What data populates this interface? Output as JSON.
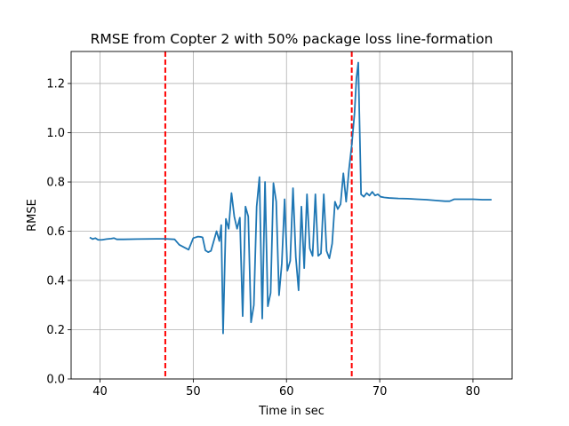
{
  "chart_data": {
    "type": "line",
    "title": "RMSE from Copter 2 with 50% package loss line-formation",
    "xlabel": "Time in sec",
    "ylabel": "RMSE",
    "xlim": [
      36.9,
      84.2
    ],
    "ylim": [
      0.0,
      1.33
    ],
    "xticks": [
      40,
      50,
      60,
      70,
      80
    ],
    "yticks": [
      0.0,
      0.2,
      0.4,
      0.6,
      0.8,
      1.0,
      1.2
    ],
    "xtick_labels": [
      "40",
      "50",
      "60",
      "70",
      "80"
    ],
    "ytick_labels": [
      "0.0",
      "0.2",
      "0.4",
      "0.6",
      "0.8",
      "1.0",
      "1.2"
    ],
    "grid": true,
    "line_color": "#1f77b4",
    "vline_color": "#ff0000",
    "vlines": [
      47.0,
      67.0
    ],
    "series": [
      {
        "x": [
          38.9,
          39.2,
          39.5,
          39.8,
          40.2,
          40.7,
          41.2,
          41.5,
          41.8,
          42.5,
          44.0,
          46.0,
          47.0,
          48.0,
          48.5,
          49.0,
          49.5,
          50.0,
          50.5,
          50.8,
          51.0,
          51.3,
          51.6,
          51.9,
          52.2,
          52.5,
          52.8,
          53.0,
          53.2,
          53.5,
          53.8,
          54.1,
          54.4,
          54.7,
          55.0,
          55.3,
          55.6,
          55.9,
          56.2,
          56.5,
          56.8,
          57.1,
          57.4,
          57.7,
          58.0,
          58.3,
          58.6,
          58.9,
          59.2,
          59.5,
          59.8,
          60.1,
          60.4,
          60.7,
          61.0,
          61.3,
          61.6,
          61.9,
          62.2,
          62.5,
          62.8,
          63.1,
          63.4,
          63.7,
          64.0,
          64.3,
          64.6,
          64.9,
          65.2,
          65.5,
          65.8,
          66.1,
          66.4,
          66.7,
          67.0,
          67.3,
          67.5,
          67.7,
          68.0,
          68.3,
          68.6,
          68.9,
          69.2,
          69.5,
          69.8,
          70.1,
          70.5,
          71.0,
          72.0,
          73.0,
          74.0,
          75.0,
          76.0,
          77.0,
          77.5,
          78.0,
          80.0,
          81.0,
          82.0
        ],
        "y": [
          0.575,
          0.568,
          0.572,
          0.565,
          0.565,
          0.568,
          0.57,
          0.572,
          0.567,
          0.567,
          0.568,
          0.569,
          0.569,
          0.567,
          0.545,
          0.535,
          0.525,
          0.572,
          0.578,
          0.577,
          0.575,
          0.522,
          0.515,
          0.52,
          0.56,
          0.6,
          0.56,
          0.625,
          0.185,
          0.65,
          0.61,
          0.755,
          0.66,
          0.61,
          0.655,
          0.255,
          0.7,
          0.66,
          0.23,
          0.3,
          0.7,
          0.82,
          0.245,
          0.8,
          0.295,
          0.35,
          0.795,
          0.72,
          0.34,
          0.47,
          0.73,
          0.44,
          0.48,
          0.775,
          0.495,
          0.36,
          0.7,
          0.45,
          0.75,
          0.53,
          0.5,
          0.75,
          0.5,
          0.51,
          0.75,
          0.52,
          0.49,
          0.55,
          0.72,
          0.69,
          0.71,
          0.835,
          0.72,
          0.85,
          0.95,
          1.08,
          1.22,
          1.285,
          0.75,
          0.74,
          0.755,
          0.745,
          0.76,
          0.745,
          0.75,
          0.74,
          0.737,
          0.735,
          0.733,
          0.732,
          0.73,
          0.728,
          0.725,
          0.722,
          0.722,
          0.73,
          0.73,
          0.728,
          0.728
        ]
      }
    ]
  }
}
